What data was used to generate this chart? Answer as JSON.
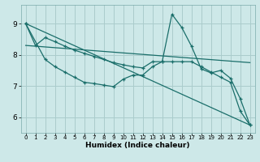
{
  "xlabel": "Humidex (Indice chaleur)",
  "bg_color": "#cde8e8",
  "grid_color": "#aacccc",
  "line_color": "#1a6e6a",
  "xlim": [
    -0.5,
    23.5
  ],
  "ylim": [
    5.5,
    9.6
  ],
  "yticks": [
    6,
    7,
    8,
    9
  ],
  "xticks": [
    0,
    1,
    2,
    3,
    4,
    5,
    6,
    7,
    8,
    9,
    10,
    11,
    12,
    13,
    14,
    15,
    16,
    17,
    18,
    19,
    20,
    21,
    22,
    23
  ],
  "series_smooth": {
    "x": [
      0,
      1,
      2,
      3,
      4,
      5,
      6,
      7,
      8,
      9,
      10,
      11,
      12,
      13,
      14,
      15,
      16,
      17,
      18,
      19,
      20,
      21,
      22,
      23
    ],
    "y": [
      9.0,
      8.3,
      8.55,
      8.42,
      8.28,
      8.15,
      8.05,
      7.95,
      7.85,
      7.75,
      7.68,
      7.62,
      7.58,
      7.78,
      7.78,
      7.78,
      7.78,
      7.78,
      7.62,
      7.45,
      7.28,
      7.12,
      6.2,
      5.75
    ]
  },
  "series_spike": {
    "x": [
      0,
      2,
      3,
      4,
      5,
      6,
      7,
      8,
      9,
      10,
      11,
      12,
      13,
      14,
      15,
      16,
      17,
      18,
      19,
      20,
      21,
      22,
      23
    ],
    "y": [
      9.0,
      7.85,
      7.62,
      7.45,
      7.28,
      7.12,
      7.08,
      7.03,
      6.98,
      7.22,
      7.35,
      7.35,
      7.62,
      7.78,
      9.3,
      8.88,
      8.28,
      7.55,
      7.42,
      7.5,
      7.25,
      6.6,
      5.75
    ]
  },
  "series_long_diagonal": {
    "x": [
      0,
      23
    ],
    "y": [
      9.0,
      5.75
    ]
  },
  "series_flat": {
    "x": [
      0,
      23
    ],
    "y": [
      8.3,
      7.75
    ]
  }
}
